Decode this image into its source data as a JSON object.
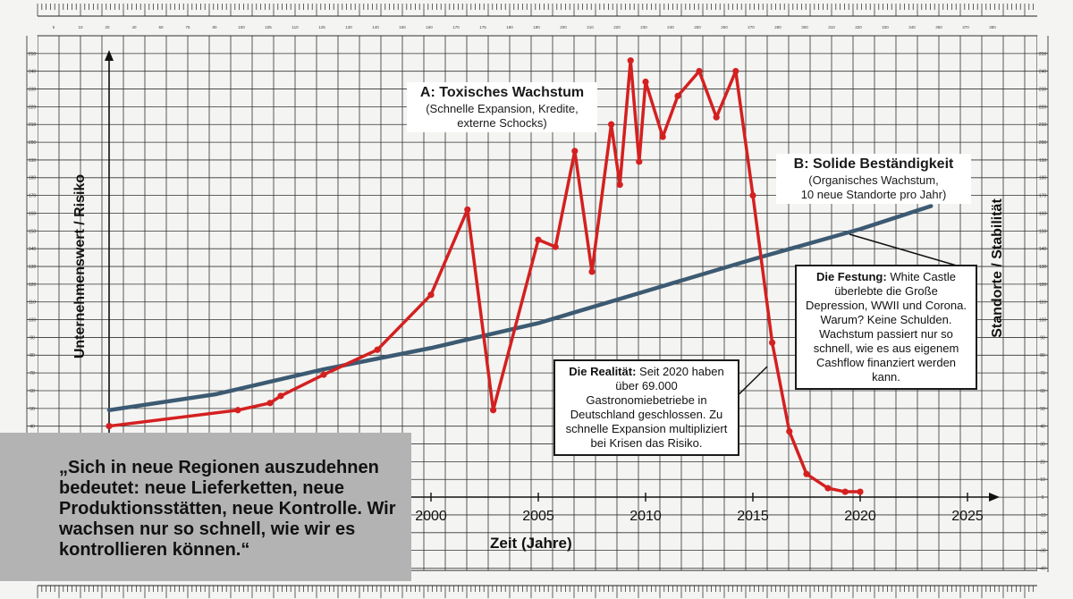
{
  "chart_data": {
    "type": "line",
    "xlabel": "Zeit (Jahre)",
    "ylabel_left": "Unternehmenswert / Risiko",
    "ylabel_right": "Standorte / Stabilität",
    "x_ticks": [
      2000,
      2005,
      2010,
      2015,
      2020,
      2025
    ],
    "xlim": [
      1985,
      2026
    ],
    "ylim": [
      0,
      255
    ],
    "series": [
      {
        "name": "A: Toxisches Wachstum",
        "color": "#d42020",
        "points": [
          [
            1985,
            40
          ],
          [
            1991,
            49
          ],
          [
            1992.5,
            53
          ],
          [
            1993,
            57
          ],
          [
            1995,
            69
          ],
          [
            1997.5,
            83
          ],
          [
            2000,
            114
          ],
          [
            2001.7,
            162
          ],
          [
            2002.9,
            49
          ],
          [
            2005,
            145
          ],
          [
            2005.8,
            141
          ],
          [
            2006.7,
            195
          ],
          [
            2007.5,
            127
          ],
          [
            2008.4,
            210
          ],
          [
            2008.8,
            176
          ],
          [
            2009.3,
            246
          ],
          [
            2009.7,
            189
          ],
          [
            2010,
            234
          ],
          [
            2010.8,
            203
          ],
          [
            2011.5,
            226
          ],
          [
            2012.5,
            240
          ],
          [
            2013.3,
            214
          ],
          [
            2014.2,
            240
          ],
          [
            2015,
            170
          ],
          [
            2015.9,
            87
          ],
          [
            2016.7,
            37
          ],
          [
            2017.5,
            13
          ],
          [
            2018.5,
            5
          ],
          [
            2019.3,
            3
          ],
          [
            2020,
            3
          ]
        ]
      },
      {
        "name": "B: Solide Beständigkeit",
        "color": "#3c5a72",
        "points": [
          [
            1985,
            49
          ],
          [
            1990,
            58
          ],
          [
            1995,
            72
          ],
          [
            2000,
            84
          ],
          [
            2005,
            98
          ],
          [
            2010,
            116
          ],
          [
            2015,
            134
          ],
          [
            2020,
            151
          ],
          [
            2023.3,
            164
          ]
        ]
      }
    ],
    "right_axis_ticks": [
      250,
      240,
      230,
      220,
      210,
      200,
      190,
      180,
      170,
      160,
      150,
      140,
      130,
      120,
      110,
      100,
      90,
      80,
      70,
      60,
      50,
      40,
      30,
      20,
      10,
      0,
      -10,
      -20,
      -30,
      -40
    ],
    "left_axis_ticks": [
      250,
      240,
      230,
      220,
      210,
      200,
      190,
      180,
      170,
      160,
      150,
      140,
      130,
      120,
      110,
      100,
      90,
      80,
      70,
      60,
      50,
      40
    ],
    "top_ruler_ticks": [
      5,
      10,
      20,
      40,
      50,
      75,
      80,
      100,
      105,
      110,
      125,
      130,
      140,
      150,
      160,
      170,
      175,
      180,
      190,
      200,
      210,
      220,
      230,
      240,
      250,
      260,
      270,
      280,
      300,
      310,
      320,
      330,
      340,
      350,
      370,
      380
    ]
  },
  "annotations": {
    "a_title": "A: Toxisches Wachstum",
    "a_sub1": "(Schnelle Expansion, Kredite,",
    "a_sub2": "externe Schocks)",
    "b_title": "B: Solide Beständigkeit",
    "b_sub1": "(Organisches Wachstum,",
    "b_sub2": "10 neue Standorte pro Jahr)",
    "festung_label": "Die Festung:",
    "festung_text": " White Castle überlebte die Große Depression, WWII und Corona. Warum? Keine Schulden. Wachstum passiert nur so schnell, wie es aus eigenem Cashflow finanziert werden kann.",
    "realitaet_label": "Die Realität:",
    "realitaet_text": " Seit 2020 haben über 69.000 Gastronomiebetriebe in Deutschland geschlossen. Zu schnelle Expansion multipliziert bei Krisen das Risiko."
  },
  "quote": "„Sich in neue Regionen auszudehnen bedeutet: neue Lieferketten, neue Produktionsstätten, neue Kontrolle. Wir wachsen nur so schnell, wie wir es kontrollieren können.“",
  "colors": {
    "red": "#d42020",
    "blue": "#3c5a72",
    "grid": "#2a2a2a",
    "quote_panel": "#b3b3b3"
  }
}
